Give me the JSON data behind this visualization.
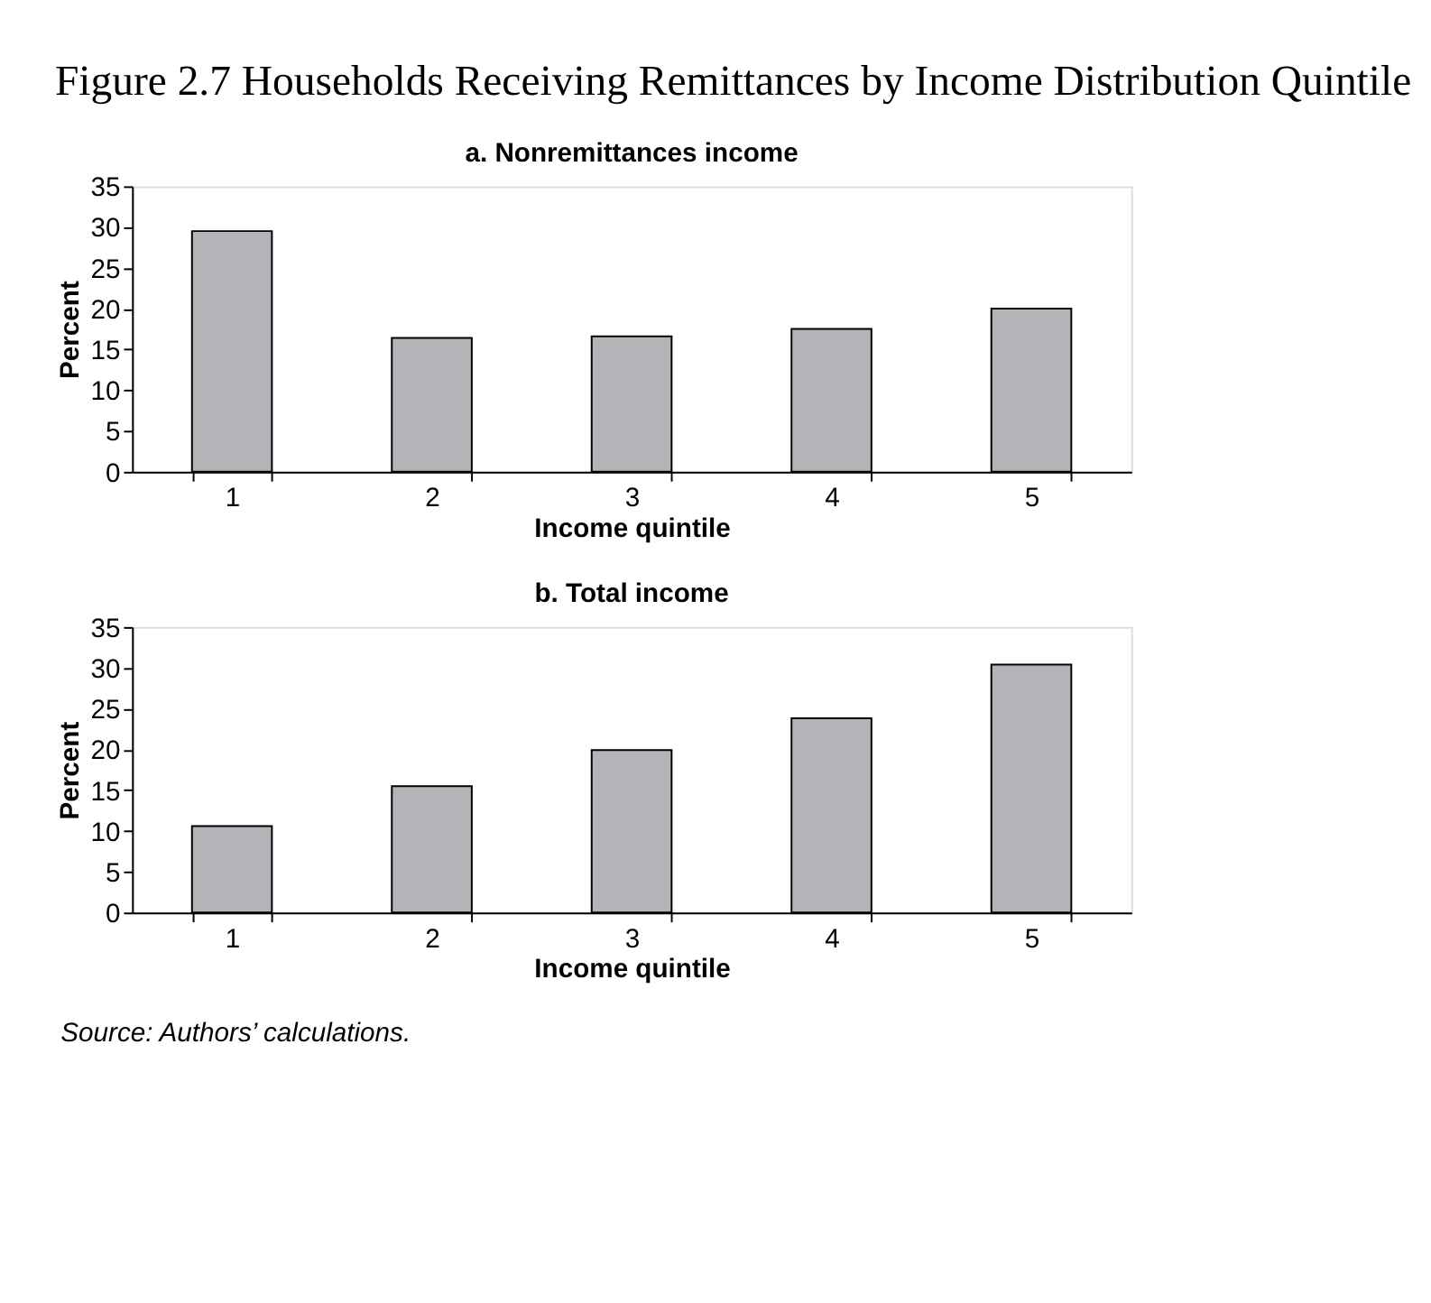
{
  "chart_data": [
    {
      "type": "bar",
      "title": "a. Nonremittances income",
      "annotations": [
        "Figure 2.7 Households Receiving Remittances by Income Distribution Quintile"
      ],
      "xlabel": "Income quintile",
      "ylabel": "Percent",
      "categories": [
        "1",
        "2",
        "3",
        "4",
        "5"
      ],
      "values": [
        29.5,
        16.4,
        16.6,
        17.5,
        20.0
      ],
      "color": "#b2b4b7",
      "ylim": [
        0,
        35
      ],
      "yticks": [
        0,
        5,
        10,
        15,
        20,
        25,
        30,
        35
      ],
      "grid": false
    },
    {
      "type": "bar",
      "title": "b. Total income",
      "annotations": [
        "Source: Authors’ calculations."
      ],
      "xlabel": "Income quintile",
      "ylabel": "Percent",
      "categories": [
        "1",
        "2",
        "3",
        "4",
        "5"
      ],
      "values": [
        10.6,
        15.5,
        19.9,
        23.8,
        30.4
      ],
      "color": "#b2b4b7",
      "ylim": [
        0,
        35
      ],
      "yticks": [
        0,
        5,
        10,
        15,
        20,
        25,
        30,
        35
      ],
      "grid": false
    }
  ]
}
